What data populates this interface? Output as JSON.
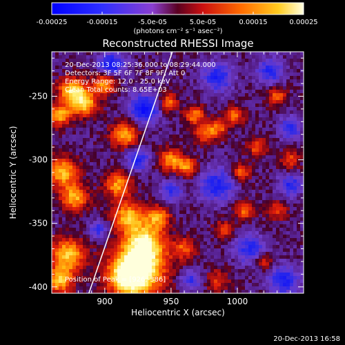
{
  "chart_data": {
    "type": "heatmap",
    "title": "Reconstructed RHESSI Image",
    "xlabel": "Heliocentric X (arcsec)",
    "ylabel": "Heliocentric Y (arcsec)",
    "xlim": [
      860,
      1050
    ],
    "ylim": [
      -405,
      -215
    ],
    "xticks": [
      900,
      950,
      1000
    ],
    "yticks": [
      -250,
      -300,
      -350,
      -400
    ],
    "colorbar": {
      "range": [
        -0.00025,
        0.00025
      ],
      "ticks": [
        "-0.00025",
        "-0.00015",
        "-5.0e-05",
        "5.0e-05",
        "0.00015",
        "0.00025"
      ],
      "unit_label": "(photons cm⁻² s⁻¹ asec⁻²)"
    },
    "annotations": [
      "20-Dec-2013 08:25:36.000 to 08:29:44.000",
      "Detectors: 3F 5F 6F 7F 8F 9F, Att 0",
      "Energy Range: 12.0 - 25.0 keV",
      "Clean    Total counts: 8.65E+03"
    ],
    "peak_label": "Position of Peak = [926,-386]",
    "footer": "20-Dec-2013 16:58",
    "limb_line": [
      [
        888,
        -405
      ],
      [
        951,
        -215
      ]
    ],
    "sources": [
      {
        "x": 926,
        "y": -386,
        "amp": 1.0,
        "s": 14
      },
      {
        "x": 930,
        "y": -365,
        "amp": 0.9,
        "s": 10
      },
      {
        "x": 918,
        "y": -392,
        "amp": 0.85,
        "s": 10
      },
      {
        "x": 884,
        "y": -255,
        "amp": 0.9,
        "s": 7
      },
      {
        "x": 875,
        "y": -245,
        "amp": 0.8,
        "s": 7
      },
      {
        "x": 866,
        "y": -265,
        "amp": 0.75,
        "s": 6
      },
      {
        "x": 868,
        "y": -310,
        "amp": 0.8,
        "s": 8
      },
      {
        "x": 877,
        "y": -330,
        "amp": 0.75,
        "s": 7
      },
      {
        "x": 872,
        "y": -375,
        "amp": 0.85,
        "s": 9
      },
      {
        "x": 866,
        "y": -395,
        "amp": 0.8,
        "s": 7
      },
      {
        "x": 900,
        "y": -240,
        "amp": 0.7,
        "s": 6
      },
      {
        "x": 915,
        "y": -280,
        "amp": 0.75,
        "s": 7
      },
      {
        "x": 910,
        "y": -320,
        "amp": 0.7,
        "s": 7
      },
      {
        "x": 918,
        "y": -345,
        "amp": 0.8,
        "s": 8
      },
      {
        "x": 940,
        "y": -345,
        "amp": 0.7,
        "s": 6
      },
      {
        "x": 950,
        "y": -300,
        "amp": 0.7,
        "s": 6
      },
      {
        "x": 948,
        "y": -255,
        "amp": 0.6,
        "s": 5
      },
      {
        "x": 968,
        "y": -265,
        "amp": 0.65,
        "s": 5
      },
      {
        "x": 975,
        "y": -280,
        "amp": 0.55,
        "s": 5
      },
      {
        "x": 985,
        "y": -275,
        "amp": 0.6,
        "s": 5
      },
      {
        "x": 962,
        "y": -305,
        "amp": 0.65,
        "s": 5
      },
      {
        "x": 998,
        "y": -265,
        "amp": 0.55,
        "s": 5
      },
      {
        "x": 1003,
        "y": -310,
        "amp": 0.55,
        "s": 5
      },
      {
        "x": 1015,
        "y": -290,
        "amp": 0.5,
        "s": 5
      },
      {
        "x": 1030,
        "y": -250,
        "amp": 0.5,
        "s": 5
      },
      {
        "x": 1040,
        "y": -300,
        "amp": 0.45,
        "s": 5
      },
      {
        "x": 1005,
        "y": -340,
        "amp": 0.55,
        "s": 5
      },
      {
        "x": 990,
        "y": -355,
        "amp": 0.45,
        "s": 5
      },
      {
        "x": 960,
        "y": -370,
        "amp": 0.5,
        "s": 6
      },
      {
        "x": 1030,
        "y": -340,
        "amp": 0.45,
        "s": 5
      },
      {
        "x": 1020,
        "y": -380,
        "amp": 0.4,
        "s": 5
      },
      {
        "x": 985,
        "y": -395,
        "amp": 0.4,
        "s": 6
      }
    ],
    "sinks": [
      {
        "x": 905,
        "y": -225,
        "amp": 0.7,
        "s": 7
      },
      {
        "x": 930,
        "y": -260,
        "amp": 0.75,
        "s": 8
      },
      {
        "x": 925,
        "y": -300,
        "amp": 0.6,
        "s": 6
      },
      {
        "x": 985,
        "y": -235,
        "amp": 0.6,
        "s": 8
      },
      {
        "x": 1025,
        "y": -230,
        "amp": 0.55,
        "s": 7
      },
      {
        "x": 1040,
        "y": -275,
        "amp": 0.5,
        "s": 6
      },
      {
        "x": 985,
        "y": -320,
        "amp": 0.6,
        "s": 9
      },
      {
        "x": 1040,
        "y": -320,
        "amp": 0.55,
        "s": 6
      },
      {
        "x": 950,
        "y": -325,
        "amp": 0.45,
        "s": 6
      },
      {
        "x": 1010,
        "y": -370,
        "amp": 0.55,
        "s": 8
      },
      {
        "x": 1035,
        "y": -395,
        "amp": 0.6,
        "s": 8
      },
      {
        "x": 965,
        "y": -395,
        "amp": 0.45,
        "s": 6
      },
      {
        "x": 895,
        "y": -355,
        "amp": 0.45,
        "s": 5
      }
    ]
  }
}
